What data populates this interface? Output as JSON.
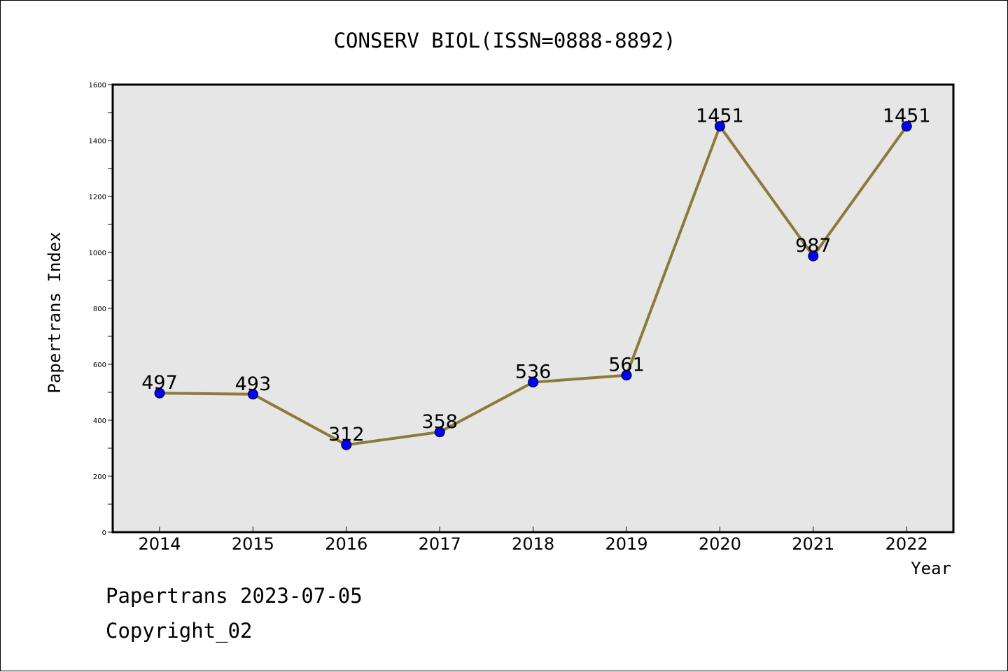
{
  "chart_data": {
    "type": "line",
    "title": "CONSERV BIOL(ISSN=0888-8892)",
    "xlabel": "Year",
    "ylabel": "Papertrans Index",
    "categories": [
      "2014",
      "2015",
      "2016",
      "2017",
      "2018",
      "2019",
      "2020",
      "2021",
      "2022"
    ],
    "series": [
      {
        "values": [
          497,
          493,
          312,
          358,
          536,
          561,
          1451,
          987,
          1451
        ]
      }
    ],
    "data_labels": [
      "497",
      "493",
      "312",
      "358",
      "536",
      "561",
      "1451",
      "987",
      "1451"
    ],
    "ylim": [
      0,
      1600
    ],
    "yticks": [
      "0",
      "200",
      "400",
      "600",
      "800",
      "1000",
      "1200",
      "1400",
      "1600"
    ],
    "grid": false,
    "legend": "none",
    "colors": {
      "line": "#8c7a3a",
      "marker": "#0000ff",
      "plot_background": "#e6e6e6"
    }
  },
  "footer": {
    "date_text": "Papertrans 2023-07-05",
    "copyright_text": "Copyright_02"
  }
}
